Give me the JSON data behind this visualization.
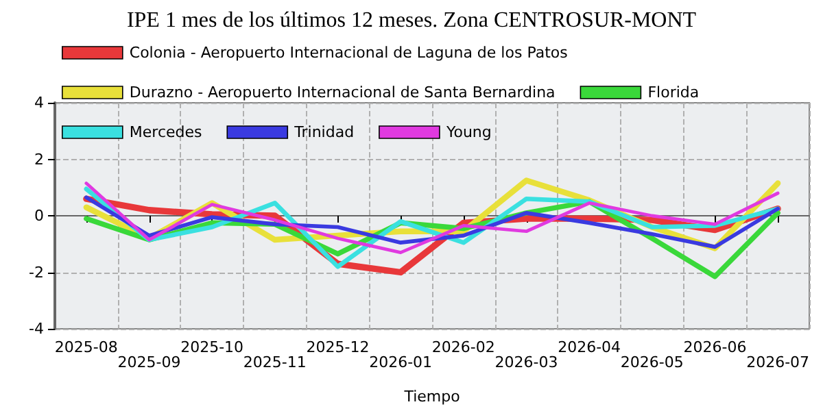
{
  "chart_data": {
    "type": "line",
    "title": "IPE 1 mes de los últimos 12 meses. Zona CENTROSUR-MONT",
    "xlabel": "Tiempo",
    "categories": [
      "2025-08",
      "2025-09",
      "2025-10",
      "2025-11",
      "2025-12",
      "2026-01",
      "2026-02",
      "2026-03",
      "2026-04",
      "2026-05",
      "2026-06",
      "2026-07"
    ],
    "series": [
      {
        "name": "Colonia - Aeropuerto Internacional de Laguna de los Patos",
        "color": "#e8383a",
        "values": [
          0.6,
          0.2,
          0.05,
          0.0,
          -1.7,
          -2.0,
          -0.25,
          -0.1,
          -0.1,
          -0.15,
          -0.5,
          0.25
        ]
      },
      {
        "name": "Durazno - Aeropuerto Internacional de Santa Bernardina",
        "color": "#e8e03a",
        "values": [
          0.3,
          -0.8,
          0.45,
          -0.85,
          -0.7,
          -0.55,
          -0.55,
          1.25,
          0.55,
          -0.4,
          -1.15,
          1.15
        ]
      },
      {
        "name": "Florida",
        "color": "#3ad83a",
        "values": [
          -0.1,
          -0.85,
          -0.25,
          -0.3,
          -1.35,
          -0.25,
          -0.45,
          0.1,
          0.5,
          -0.8,
          -2.15,
          0.1
        ]
      },
      {
        "name": "Mercedes",
        "color": "#3ae0e0",
        "values": [
          0.95,
          -0.85,
          -0.4,
          0.45,
          -1.8,
          -0.2,
          -0.95,
          0.6,
          0.5,
          -0.4,
          -0.35,
          0.25
        ]
      },
      {
        "name": "Trinidad",
        "color": "#3a3ae0",
        "values": [
          0.65,
          -0.7,
          -0.05,
          -0.3,
          -0.4,
          -0.95,
          -0.7,
          0.1,
          -0.25,
          -0.65,
          -1.1,
          0.25
        ]
      },
      {
        "name": "Young",
        "color": "#e03ae0",
        "values": [
          1.15,
          -0.85,
          0.4,
          -0.15,
          -0.8,
          -1.3,
          -0.35,
          -0.55,
          0.45,
          0.0,
          -0.3,
          0.8
        ]
      }
    ],
    "ylim": [
      -4,
      4
    ],
    "yticks": [
      -4,
      -2,
      0,
      2,
      4
    ],
    "grid": true,
    "legend": "top",
    "marker": "none",
    "line_style": "solid"
  }
}
